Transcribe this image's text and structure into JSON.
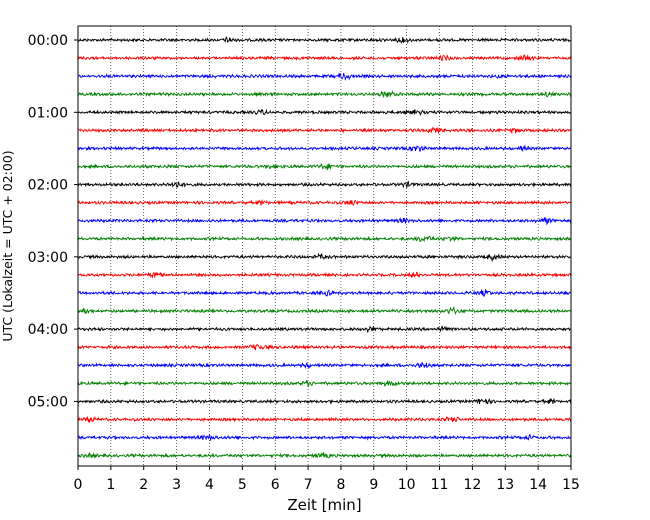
{
  "chart_data": {
    "type": "line",
    "title": "",
    "xlabel": "Zeit  [min]",
    "ylabel": "UTC (Lokalzeit = UTC + 02:00)",
    "xlim": [
      0,
      15
    ],
    "x_ticks": [
      0,
      1,
      2,
      3,
      4,
      5,
      6,
      7,
      8,
      9,
      10,
      11,
      12,
      13,
      14,
      15
    ],
    "y_tick_labels": [
      "00:00",
      "01:00",
      "02:00",
      "03:00",
      "04:00",
      "05:00"
    ],
    "minutes_per_row": 15,
    "row_count": 24,
    "grid": "vertical dotted at each minute",
    "row_color_cycle": [
      "#000000",
      "#ff0000",
      "#0000ff",
      "#008000"
    ]
  }
}
